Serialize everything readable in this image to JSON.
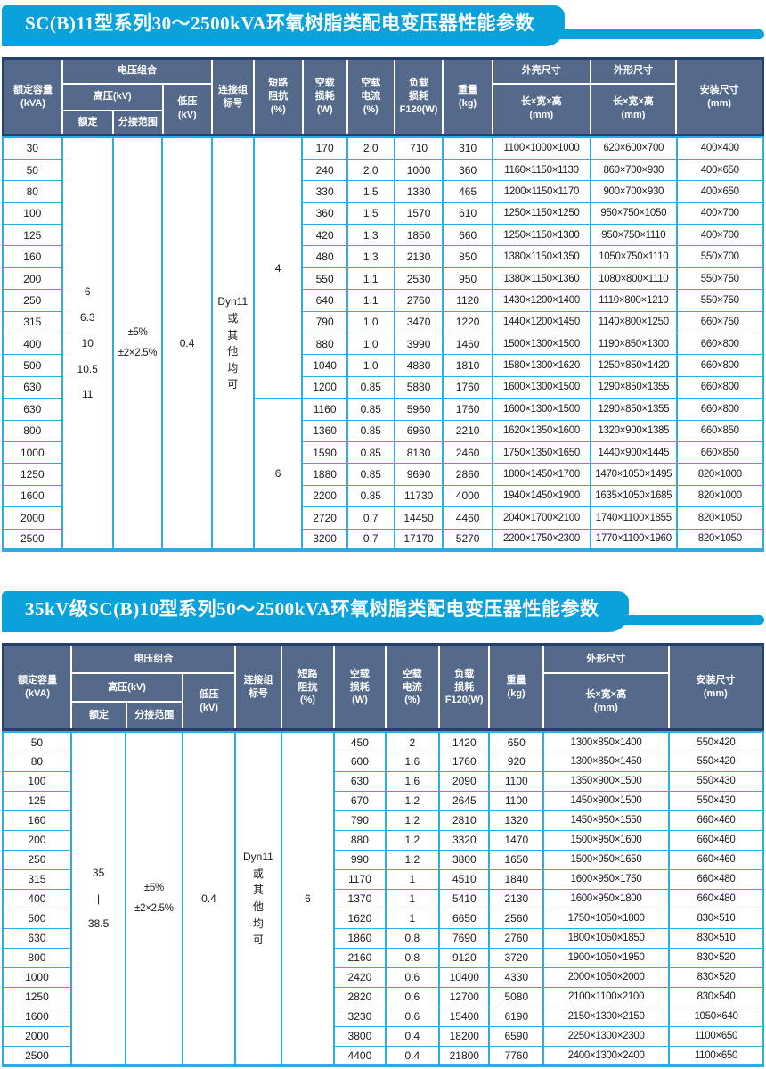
{
  "colors": {
    "title_bar_bg": "#0ba2dc",
    "header_bg": "#55698b",
    "header_outer_border": "#24406c",
    "header_inner_border": "#ffffff",
    "data_grid_border": "#29ade3",
    "title_text": "#ffffff",
    "data_text": "#1a1a1a"
  },
  "table1": {
    "title": "SC(B)11型系列30～2500kVA环氧树脂类配电变压器性能参数",
    "header": {
      "capacity": "额定容量\n(kVA)",
      "voltage_combo": "电压组合",
      "hv": "高压(kV)",
      "rated": "额定",
      "tap": "分接范围",
      "lv": "低压\n(kV)",
      "vector_group": "连接组\n标号",
      "impedance": "短路\n阻抗\n(%)",
      "noload_loss": "空载\n损耗\n(W)",
      "noload_current": "空载\n电流\n(%)",
      "load_loss": "负载\n损耗\nF120(W)",
      "weight": "重量\n(kg)",
      "shell_dims": "外壳尺寸",
      "overall_dims": "外形尺寸",
      "lwh": "长×宽×高\n(mm)",
      "install_dims": "安装尺寸\n(mm)"
    },
    "hv_rated": "6\n6.3\n10\n10.5\n11",
    "tap_range": "±5%\n±2×2.5%",
    "lv": "0.4",
    "vector_group": "Dyn11\n或\n其\n他\n均\n可",
    "impedance_groups": [
      {
        "value": "4",
        "rows": 12
      },
      {
        "value": "6",
        "rows": 7
      }
    ],
    "rows": [
      [
        "30",
        "170",
        "2.0",
        "710",
        "310",
        "1100×1000×1000",
        "620×600×700",
        "400×400"
      ],
      [
        "50",
        "240",
        "2.0",
        "1000",
        "360",
        "1160×1150×1130",
        "860×700×930",
        "400×650"
      ],
      [
        "80",
        "330",
        "1.5",
        "1380",
        "465",
        "1200×1150×1170",
        "900×700×930",
        "400×650"
      ],
      [
        "100",
        "360",
        "1.5",
        "1570",
        "610",
        "1250×1150×1250",
        "950×750×1050",
        "400×700"
      ],
      [
        "125",
        "420",
        "1.3",
        "1850",
        "660",
        "1250×1150×1300",
        "950×750×1110",
        "400×700"
      ],
      [
        "160",
        "480",
        "1.3",
        "2130",
        "850",
        "1380×1150×1350",
        "1050×750×1110",
        "550×700"
      ],
      [
        "200",
        "550",
        "1.1",
        "2530",
        "950",
        "1380×1150×1360",
        "1080×800×1110",
        "550×750"
      ],
      [
        "250",
        "640",
        "1.1",
        "2760",
        "1120",
        "1430×1200×1400",
        "1110×800×1210",
        "550×750"
      ],
      [
        "315",
        "790",
        "1.0",
        "3470",
        "1220",
        "1440×1200×1450",
        "1140×800×1250",
        "660×750"
      ],
      [
        "400",
        "880",
        "1.0",
        "3990",
        "1460",
        "1500×1300×1500",
        "1190×850×1300",
        "660×800"
      ],
      [
        "500",
        "1040",
        "1.0",
        "4880",
        "1810",
        "1580×1300×1620",
        "1250×850×1420",
        "660×800"
      ],
      [
        "630",
        "1200",
        "0.85",
        "5880",
        "1760",
        "1600×1300×1500",
        "1290×850×1355",
        "660×800"
      ],
      [
        "630",
        "1160",
        "0.85",
        "5960",
        "1760",
        "1600×1300×1500",
        "1290×850×1355",
        "660×800"
      ],
      [
        "800",
        "1360",
        "0.85",
        "6960",
        "2210",
        "1620×1350×1600",
        "1320×900×1385",
        "660×850"
      ],
      [
        "1000",
        "1590",
        "0.85",
        "8130",
        "2460",
        "1750×1350×1650",
        "1440×900×1445",
        "660×850"
      ],
      [
        "1250",
        "1880",
        "0.85",
        "9690",
        "2860",
        "1800×1450×1700",
        "1470×1050×1495",
        "820×1000"
      ],
      [
        "1600",
        "2200",
        "0.85",
        "11730",
        "4000",
        "1940×1450×1900",
        "1635×1050×1685",
        "820×1000"
      ],
      [
        "2000",
        "2720",
        "0.7",
        "14450",
        "4460",
        "2040×1700×2100",
        "1740×1100×1855",
        "820×1050"
      ],
      [
        "2500",
        "3200",
        "0.7",
        "17170",
        "5270",
        "2200×1750×2300",
        "1770×1100×1960",
        "820×1050"
      ]
    ]
  },
  "table2": {
    "title": "35kV级SC(B)10型系列50～2500kVA环氧树脂类配电变压器性能参数",
    "header": {
      "capacity": "额定容量\n(kVA)",
      "voltage_combo": "电压组合",
      "hv": "高压(kV)",
      "rated": "额定",
      "tap": "分接范围",
      "lv": "低压\n(kV)",
      "vector_group": "连接组\n标号",
      "impedance": "短路\n阻抗\n(%)",
      "noload_loss": "空载\n损耗\n(W)",
      "noload_current": "空载\n电流\n(%)",
      "load_loss": "负载\n损耗\nF120(W)",
      "weight": "重量\n(kg)",
      "overall_dims": "外形尺寸",
      "lwh": "长×宽×高\n(mm)",
      "install_dims": "安装尺寸\n(mm)"
    },
    "hv_rated": "35\n|\n38.5",
    "tap_range": "±5%\n±2×2.5%",
    "lv": "0.4",
    "vector_group": "Dyn11\n或\n其\n他\n均\n可",
    "impedance_groups": [
      {
        "value": "6",
        "rows": 17
      }
    ],
    "rows": [
      [
        "50",
        "450",
        "2",
        "1420",
        "650",
        "1300×850×1400",
        "550×420"
      ],
      [
        "80",
        "600",
        "1.6",
        "1760",
        "920",
        "1300×850×1450",
        "550×420"
      ],
      [
        "100",
        "630",
        "1.6",
        "2090",
        "1100",
        "1350×900×1500",
        "550×430"
      ],
      [
        "125",
        "670",
        "1.2",
        "2645",
        "1100",
        "1450×900×1500",
        "550×430"
      ],
      [
        "160",
        "790",
        "1.2",
        "2810",
        "1320",
        "1450×950×1550",
        "660×460"
      ],
      [
        "200",
        "880",
        "1.2",
        "3320",
        "1470",
        "1500×950×1600",
        "660×460"
      ],
      [
        "250",
        "990",
        "1.2",
        "3800",
        "1650",
        "1500×950×1650",
        "660×460"
      ],
      [
        "315",
        "1170",
        "1",
        "4510",
        "1840",
        "1600×950×1750",
        "660×480"
      ],
      [
        "400",
        "1370",
        "1",
        "5410",
        "2130",
        "1600×950×1800",
        "660×480"
      ],
      [
        "500",
        "1620",
        "1",
        "6650",
        "2560",
        "1750×1050×1800",
        "830×510"
      ],
      [
        "630",
        "1860",
        "0.8",
        "7690",
        "2760",
        "1800×1050×1850",
        "830×510"
      ],
      [
        "800",
        "2160",
        "0.8",
        "9120",
        "3720",
        "1900×1050×1950",
        "830×520"
      ],
      [
        "1000",
        "2420",
        "0.6",
        "10400",
        "4330",
        "2000×1050×2000",
        "830×520"
      ],
      [
        "1250",
        "2820",
        "0.6",
        "12700",
        "5080",
        "2100×1100×2100",
        "830×540"
      ],
      [
        "1600",
        "3230",
        "0.6",
        "15400",
        "6190",
        "2150×1300×2150",
        "1050×640"
      ],
      [
        "2000",
        "3800",
        "0.4",
        "18200",
        "6590",
        "2250×1300×2300",
        "1100×650"
      ],
      [
        "2500",
        "4400",
        "0.4",
        "21800",
        "7760",
        "2400×1300×2400",
        "1100×650"
      ]
    ]
  }
}
